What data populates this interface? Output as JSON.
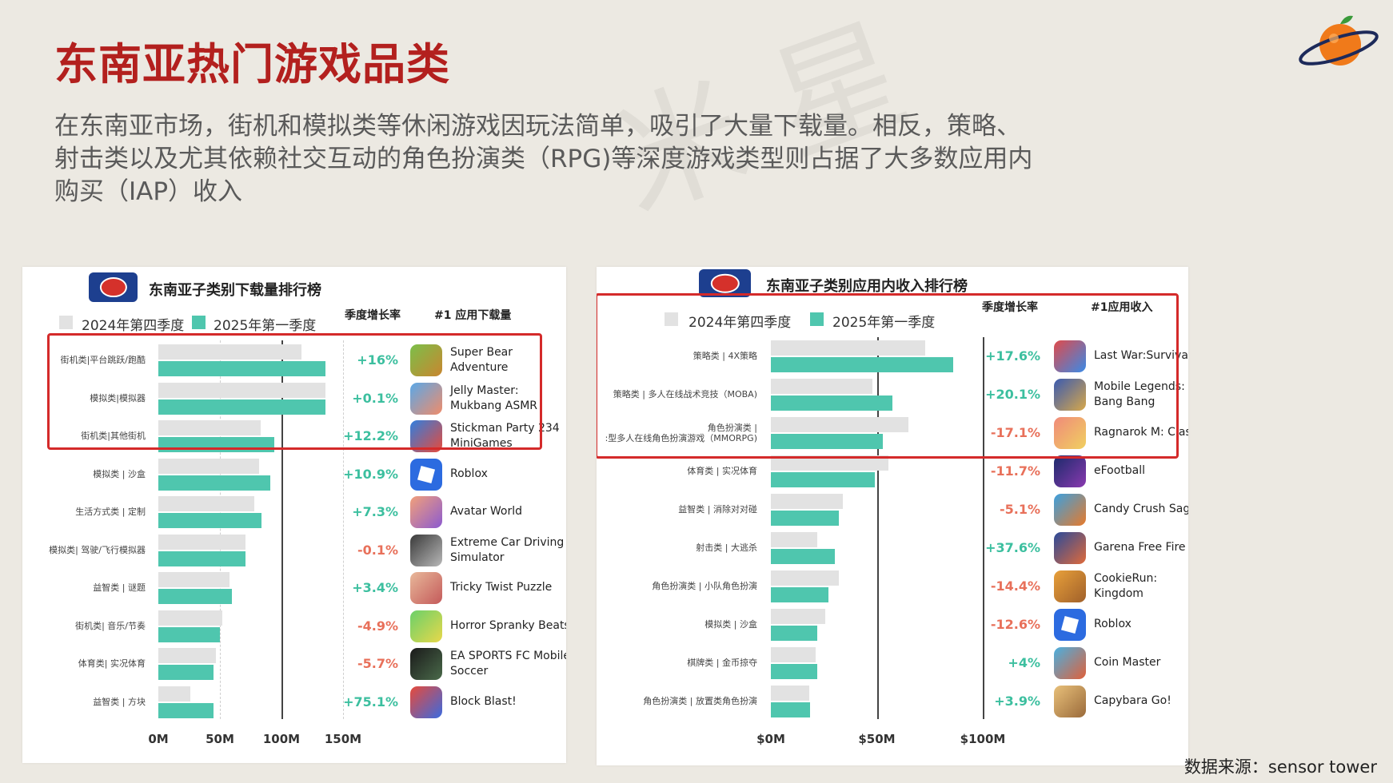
{
  "page": {
    "title": "东南亚热门游戏品类",
    "intro_lines": [
      "在东南亚市场，街机和模拟类等休闲游戏因玩法简单，吸引了大量下载量。相反，策略、",
      "射击类以及尤其依赖社交互动的角色扮演类（RPG)等深度游戏类型则占据了大多数应用内",
      "购买（IAP）收入"
    ],
    "source": "数据来源：sensor tower"
  },
  "colors": {
    "title": "#b3201e",
    "q4_2024": "#e2e2e2",
    "q1_2025": "#4fc6ae",
    "positive": "#3cbf9f",
    "negative": "#e8705a",
    "highlight": "#d42a2a"
  },
  "chart_data": [
    {
      "type": "bar",
      "orientation": "horizontal",
      "title": "东南亚子类别下载量排行榜",
      "growth_header": "季度增长率",
      "app_header": "#1 应用下载量",
      "xlim": [
        0,
        150
      ],
      "ticks": [
        "0M",
        "50M",
        "100M",
        "150M"
      ],
      "tick_values": [
        0,
        50,
        100,
        150
      ],
      "legend": "top-left",
      "categories": [
        "街机类|平台跳跃/跑酷",
        "模拟类|模拟器",
        "街机类|其他街机",
        "模拟类 | 沙盒",
        "生活方式类 | 定制",
        "模拟类| 驾驶/飞行模拟器",
        "益智类 | 谜题",
        "街机类| 音乐/节奏",
        "体育类| 实况体育",
        "益智类 | 方块"
      ],
      "series": [
        {
          "name": "2024年第四季度",
          "values": [
            116,
            136,
            83,
            82,
            78,
            71,
            58,
            52,
            47,
            26
          ]
        },
        {
          "name": "2025年第一季度",
          "values": [
            136,
            136,
            94,
            91,
            84,
            71,
            60,
            50,
            45,
            45
          ]
        }
      ],
      "growth": [
        "+16%",
        "+0.1%",
        "+12.2%",
        "+10.9%",
        "+7.3%",
        "-0.1%",
        "+3.4%",
        "-4.9%",
        "-5.7%",
        "+75.1%"
      ],
      "apps": [
        {
          "name": "Super Bear\nAdventure",
          "icon": "super-bear-adventure-icon",
          "c1": "#7bbf4a",
          "c2": "#c9862f"
        },
        {
          "name": "Jelly Master:\nMukbang ASMR",
          "icon": "jelly-master-icon",
          "c1": "#5aa8e8",
          "c2": "#f08c6a"
        },
        {
          "name": "Stickman Party 234\nMiniGames",
          "icon": "stickman-party-icon",
          "c1": "#2f7fe0",
          "c2": "#e84a3a"
        },
        {
          "name": "Roblox",
          "icon": "roblox-icon",
          "c1": "#2c6be0",
          "c2": "#2c6be0"
        },
        {
          "name": "Avatar World",
          "icon": "avatar-world-icon",
          "c1": "#f2a07a",
          "c2": "#8b5ad0"
        },
        {
          "name": "Extreme Car Driving\nSimulator",
          "icon": "extreme-car-driving-icon",
          "c1": "#3a3a3a",
          "c2": "#b8b8b8"
        },
        {
          "name": "Tricky Twist Puzzle",
          "icon": "tricky-twist-puzzle-icon",
          "c1": "#e8b89a",
          "c2": "#c45a5a"
        },
        {
          "name": "Horror Spranky Beats",
          "icon": "horror-spranky-beats-icon",
          "c1": "#6ad06a",
          "c2": "#e8d84a"
        },
        {
          "name": "EA SPORTS FC Mobile\nSoccer",
          "icon": "ea-sports-fc-icon",
          "c1": "#1a1a1a",
          "c2": "#4a6a4a"
        },
        {
          "name": "Block Blast!",
          "icon": "block-blast-icon",
          "c1": "#e84a3a",
          "c2": "#3a6ae0"
        }
      ],
      "highlight_rows": 3
    },
    {
      "type": "bar",
      "orientation": "horizontal",
      "title": "东南亚子类别应用内收入排行榜",
      "growth_header": "季度增长率",
      "app_header": "#1应用收入",
      "xlim": [
        0,
        100
      ],
      "ticks": [
        "$0M",
        "$50M",
        "$100M"
      ],
      "tick_values": [
        0,
        50,
        100
      ],
      "legend": "top-left",
      "categories": [
        "策略类 | 4X策略",
        "策略类 | 多人在线战术竞技（MOBA)",
        "角色扮演类 |\n:型多人在线角色扮演游戏（MMORPG)",
        "体育类 | 实况体育",
        "益智类 | 消除对对碰",
        "射击类 | 大逃杀",
        "角色扮演类 | 小队角色扮演",
        "模拟类 | 沙盒",
        "棋牌类 | 金币掠夺",
        "角色扮演类 | 放置类角色扮演"
      ],
      "series": [
        {
          "name": "2024年第四季度",
          "values": [
            73,
            48,
            65,
            55.5,
            34,
            22,
            32,
            25.5,
            21,
            18
          ]
        },
        {
          "name": "2025年第一季度",
          "values": [
            86,
            57.5,
            53,
            49,
            32,
            30,
            27,
            22,
            22,
            18.5
          ]
        }
      ],
      "growth": [
        "+17.6%",
        "+20.1%",
        "-17.1%",
        "-11.7%",
        "-5.1%",
        "+37.6%",
        "-14.4%",
        "-12.6%",
        "+4%",
        "+3.9%"
      ],
      "apps": [
        {
          "name": "Last War:Survival",
          "icon": "last-war-survival-icon",
          "c1": "#e04a4a",
          "c2": "#3a8ae8"
        },
        {
          "name": "Mobile Legends:\nBang Bang",
          "icon": "mobile-legends-icon",
          "c1": "#3a5ab0",
          "c2": "#d8a84a"
        },
        {
          "name": "Ragnarok M: Clas",
          "icon": "ragnarok-m-icon",
          "c1": "#f08a7a",
          "c2": "#f0d060"
        },
        {
          "name": "eFootball",
          "icon": "efootball-icon",
          "c1": "#1a2a6a",
          "c2": "#8a3ab0"
        },
        {
          "name": "Candy Crush Saga",
          "icon": "candy-crush-saga-icon",
          "c1": "#3aa0e0",
          "c2": "#e87a2a"
        },
        {
          "name": "Garena Free Fire",
          "icon": "garena-free-fire-icon",
          "c1": "#2a4a9a",
          "c2": "#e06a3a"
        },
        {
          "name": "CookieRun:\nKingdom",
          "icon": "cookierun-kingdom-icon",
          "c1": "#e8a03a",
          "c2": "#a0602a"
        },
        {
          "name": "Roblox",
          "icon": "roblox-icon",
          "c1": "#2c6be0",
          "c2": "#2c6be0"
        },
        {
          "name": "Coin Master",
          "icon": "coin-master-icon",
          "c1": "#4ab0e0",
          "c2": "#e0603a"
        },
        {
          "name": "Capybara Go!",
          "icon": "capybara-go-icon",
          "c1": "#e8c07a",
          "c2": "#9a6a3a"
        }
      ],
      "highlight_rows": 3
    }
  ]
}
